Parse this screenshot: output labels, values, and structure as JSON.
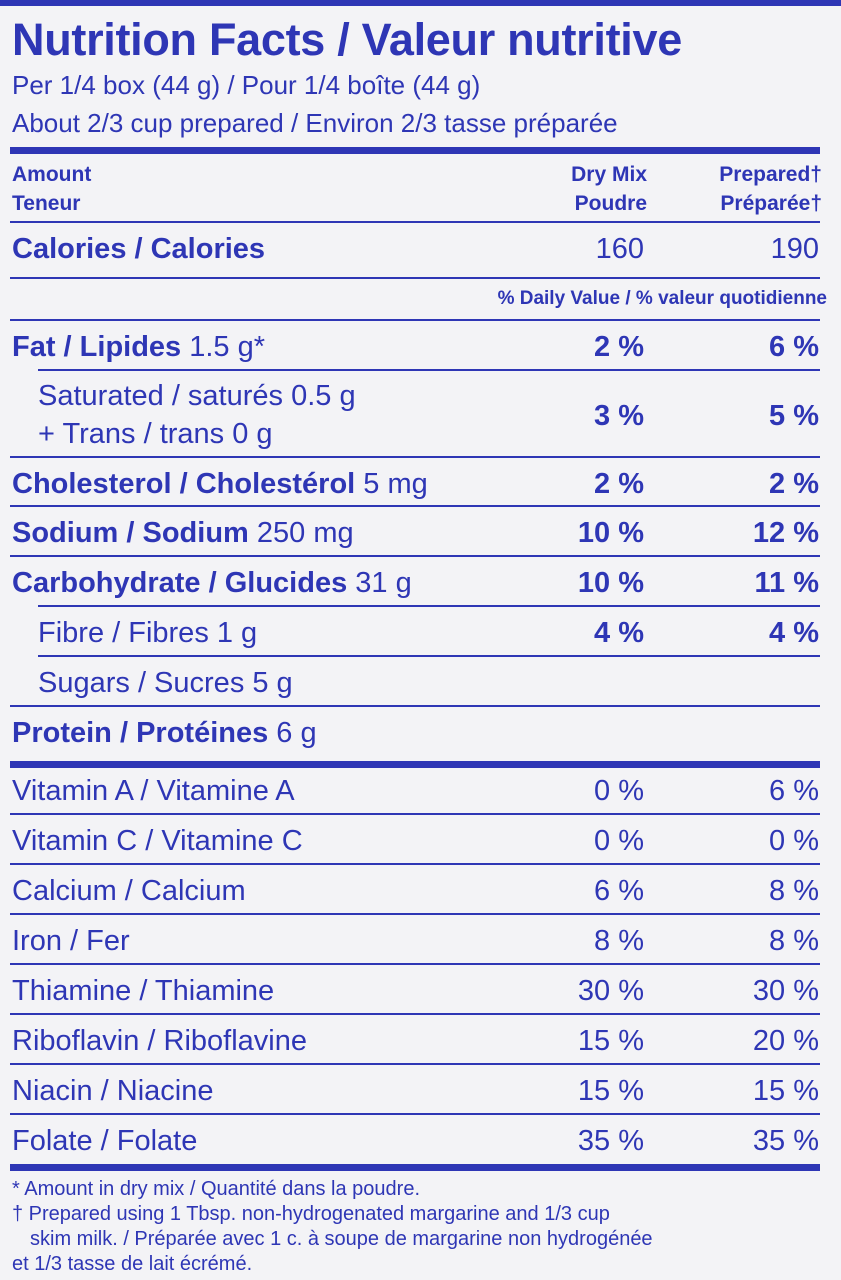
{
  "title": "Nutrition Facts / Valeur nutritive",
  "serving_line1": "Per 1/4 box (44 g) / Pour 1/4 boîte (44 g)",
  "serving_line2": "About 2/3 cup prepared / Environ 2/3 tasse préparée",
  "header": {
    "amount": "Amount",
    "teneur": "Teneur",
    "dry_mix": "Dry Mix",
    "poudre": "Poudre",
    "prepared": "Prepared†",
    "preparee": "Préparée†"
  },
  "calories": {
    "label": "Calories / Calories",
    "dry": "160",
    "prepared": "190"
  },
  "daily_value_heading": "% Daily Value / % valeur quotidienne",
  "nutrients": [
    {
      "name": "Fat / Lipides",
      "amount": "1.5 g*",
      "dry": "2 %",
      "prepared": "6 %"
    },
    {
      "name": "Saturated / saturés 0.5 g",
      "name2": "+ Trans / trans 0 g",
      "dry": "3 %",
      "prepared": "5 %"
    },
    {
      "name": "Cholesterol / Cholestérol",
      "amount": "5 mg",
      "dry": "2 %",
      "prepared": "2 %"
    },
    {
      "name": "Sodium / Sodium",
      "amount": "250 mg",
      "dry": "10 %",
      "prepared": "12 %"
    },
    {
      "name": "Carbohydrate / Glucides",
      "amount": "31 g",
      "dry": "10 %",
      "prepared": "11 %"
    },
    {
      "name": "Fibre / Fibres 1 g",
      "dry": "4 %",
      "prepared": "4 %"
    },
    {
      "name": "Sugars / Sucres 5 g"
    },
    {
      "name": "Protein / Protéines",
      "amount": "6 g"
    }
  ],
  "vitamins": [
    {
      "name": "Vitamin A / Vitamine A",
      "dry": "0 %",
      "prepared": "6 %"
    },
    {
      "name": "Vitamin C / Vitamine C",
      "dry": "0 %",
      "prepared": "0 %"
    },
    {
      "name": "Calcium / Calcium",
      "dry": "6 %",
      "prepared": "8 %"
    },
    {
      "name": "Iron / Fer",
      "dry": "8 %",
      "prepared": "8 %"
    },
    {
      "name": "Thiamine / Thiamine",
      "dry": "30 %",
      "prepared": "30 %"
    },
    {
      "name": "Riboflavin / Riboflavine",
      "dry": "15 %",
      "prepared": "20 %"
    },
    {
      "name": "Niacin / Niacine",
      "dry": "15 %",
      "prepared": "15 %"
    },
    {
      "name": "Folate / Folate",
      "dry": "35 %",
      "prepared": "35 %"
    }
  ],
  "footnotes": {
    "line1": "* Amount in dry mix / Quantité dans la poudre.",
    "line2": "† Prepared using 1 Tbsp. non-hydrogenated margarine and 1/3 cup",
    "line3": "skim milk. / Préparée avec 1 c. à soupe de margarine non hydrogénée",
    "line4": "et 1/3 tasse de lait écrémé."
  },
  "colors": {
    "ink": "#2e36b5",
    "background": "#f3f3f6"
  }
}
